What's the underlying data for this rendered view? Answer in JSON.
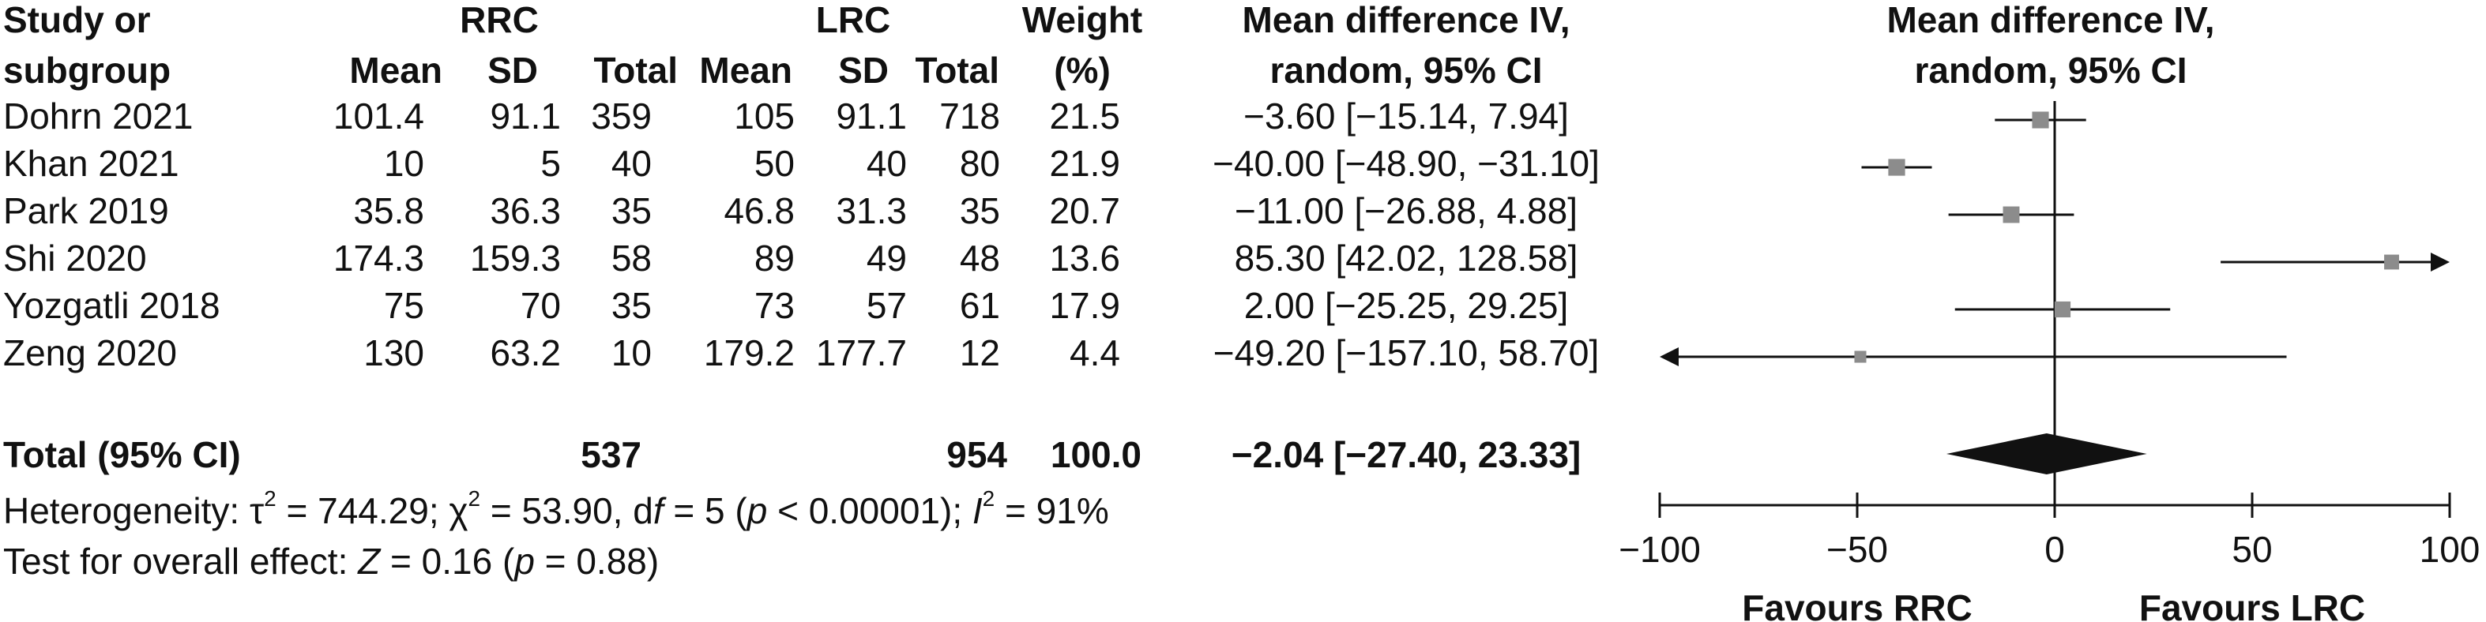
{
  "header": {
    "study_line1": "Study or",
    "study_line2": "subgroup",
    "group1": "RRC",
    "group2": "LRC",
    "mean": "Mean",
    "sd": "SD",
    "total": "Total",
    "weight_line1": "Weight",
    "weight_line2": "(%)",
    "md_line1": "Mean difference IV,",
    "md_line2": "random, 95% CI",
    "plot_line1": "Mean difference IV,",
    "plot_line2": "random, 95% CI"
  },
  "studies": [
    {
      "name": "Dohrn 2021",
      "rrc_mean": "101.4",
      "rrc_sd": "91.1",
      "rrc_total": "359",
      "lrc_mean": "105",
      "lrc_sd": "91.1",
      "lrc_total": "718",
      "weight": "21.5",
      "ci_text": "−3.60 [−15.14, 7.94]"
    },
    {
      "name": "Khan 2021",
      "rrc_mean": "10",
      "rrc_sd": "5",
      "rrc_total": "40",
      "lrc_mean": "50",
      "lrc_sd": "40",
      "lrc_total": "80",
      "weight": "21.9",
      "ci_text": "−40.00 [−48.90, −31.10]"
    },
    {
      "name": "Park 2019",
      "rrc_mean": "35.8",
      "rrc_sd": "36.3",
      "rrc_total": "35",
      "lrc_mean": "46.8",
      "lrc_sd": "31.3",
      "lrc_total": "35",
      "weight": "20.7",
      "ci_text": "−11.00 [−26.88, 4.88]"
    },
    {
      "name": "Shi 2020",
      "rrc_mean": "174.3",
      "rrc_sd": "159.3",
      "rrc_total": "58",
      "lrc_mean": "89",
      "lrc_sd": "49",
      "lrc_total": "48",
      "weight": "13.6",
      "ci_text": "85.30 [42.02, 128.58]"
    },
    {
      "name": "Yozgatli 2018",
      "rrc_mean": "75",
      "rrc_sd": "70",
      "rrc_total": "35",
      "lrc_mean": "73",
      "lrc_sd": "57",
      "lrc_total": "61",
      "weight": "17.9",
      "ci_text": "2.00 [−25.25, 29.25]"
    },
    {
      "name": "Zeng 2020",
      "rrc_mean": "130",
      "rrc_sd": "63.2",
      "rrc_total": "10",
      "lrc_mean": "179.2",
      "lrc_sd": "177.7",
      "lrc_total": "12",
      "weight": "4.4",
      "ci_text": "−49.20 [−157.10, 58.70]"
    }
  ],
  "total": {
    "label": "Total (95% CI)",
    "rrc_total": "537",
    "lrc_total": "954",
    "weight": "100.0",
    "ci_text": "−2.04 [−27.40, 23.33]"
  },
  "heterogeneity": {
    "prefix": "Heterogeneity: τ",
    "tau_sup": "2",
    "tau_value": " = 744.29; χ",
    "chi_sup": "2",
    "chi_value": " = 53.90, d",
    "df_f": "f",
    "df_value": " = 5 (",
    "p_sym": "p",
    "p_value": " < 0.00001); ",
    "i_sym": "I",
    "i_sup": "2",
    "i_value": " = 91%"
  },
  "overall_effect": {
    "prefix": "Test for overall effect: ",
    "z_sym": "Z",
    "z_value": " = 0.16 (",
    "p_sym": "p",
    "p_value": " = 0.88)"
  },
  "chart_data": {
    "type": "forest",
    "axis": {
      "min": -100,
      "max": 100,
      "ticks": [
        -100,
        -50,
        0,
        50,
        100
      ],
      "tick_labels": [
        "−100",
        "−50",
        "0",
        "50",
        "100"
      ]
    },
    "favours_left": "Favours RRC",
    "favours_right": "Favours LRC",
    "studies": [
      {
        "mean": -3.6,
        "lo": -15.14,
        "hi": 7.94,
        "weight": 21.5
      },
      {
        "mean": -40.0,
        "lo": -48.9,
        "hi": -31.1,
        "weight": 21.9
      },
      {
        "mean": -11.0,
        "lo": -26.88,
        "hi": 4.88,
        "weight": 20.7
      },
      {
        "mean": 85.3,
        "lo": 42.02,
        "hi": 128.58,
        "weight": 13.6
      },
      {
        "mean": 2.0,
        "lo": -25.25,
        "hi": 29.25,
        "weight": 17.9
      },
      {
        "mean": -49.2,
        "lo": -157.1,
        "hi": 58.7,
        "weight": 4.4
      }
    ],
    "pooled": {
      "mean": -2.04,
      "lo": -27.4,
      "hi": 23.33
    },
    "marker_color": "#8c8c8c",
    "diamond_color": "#111111"
  }
}
